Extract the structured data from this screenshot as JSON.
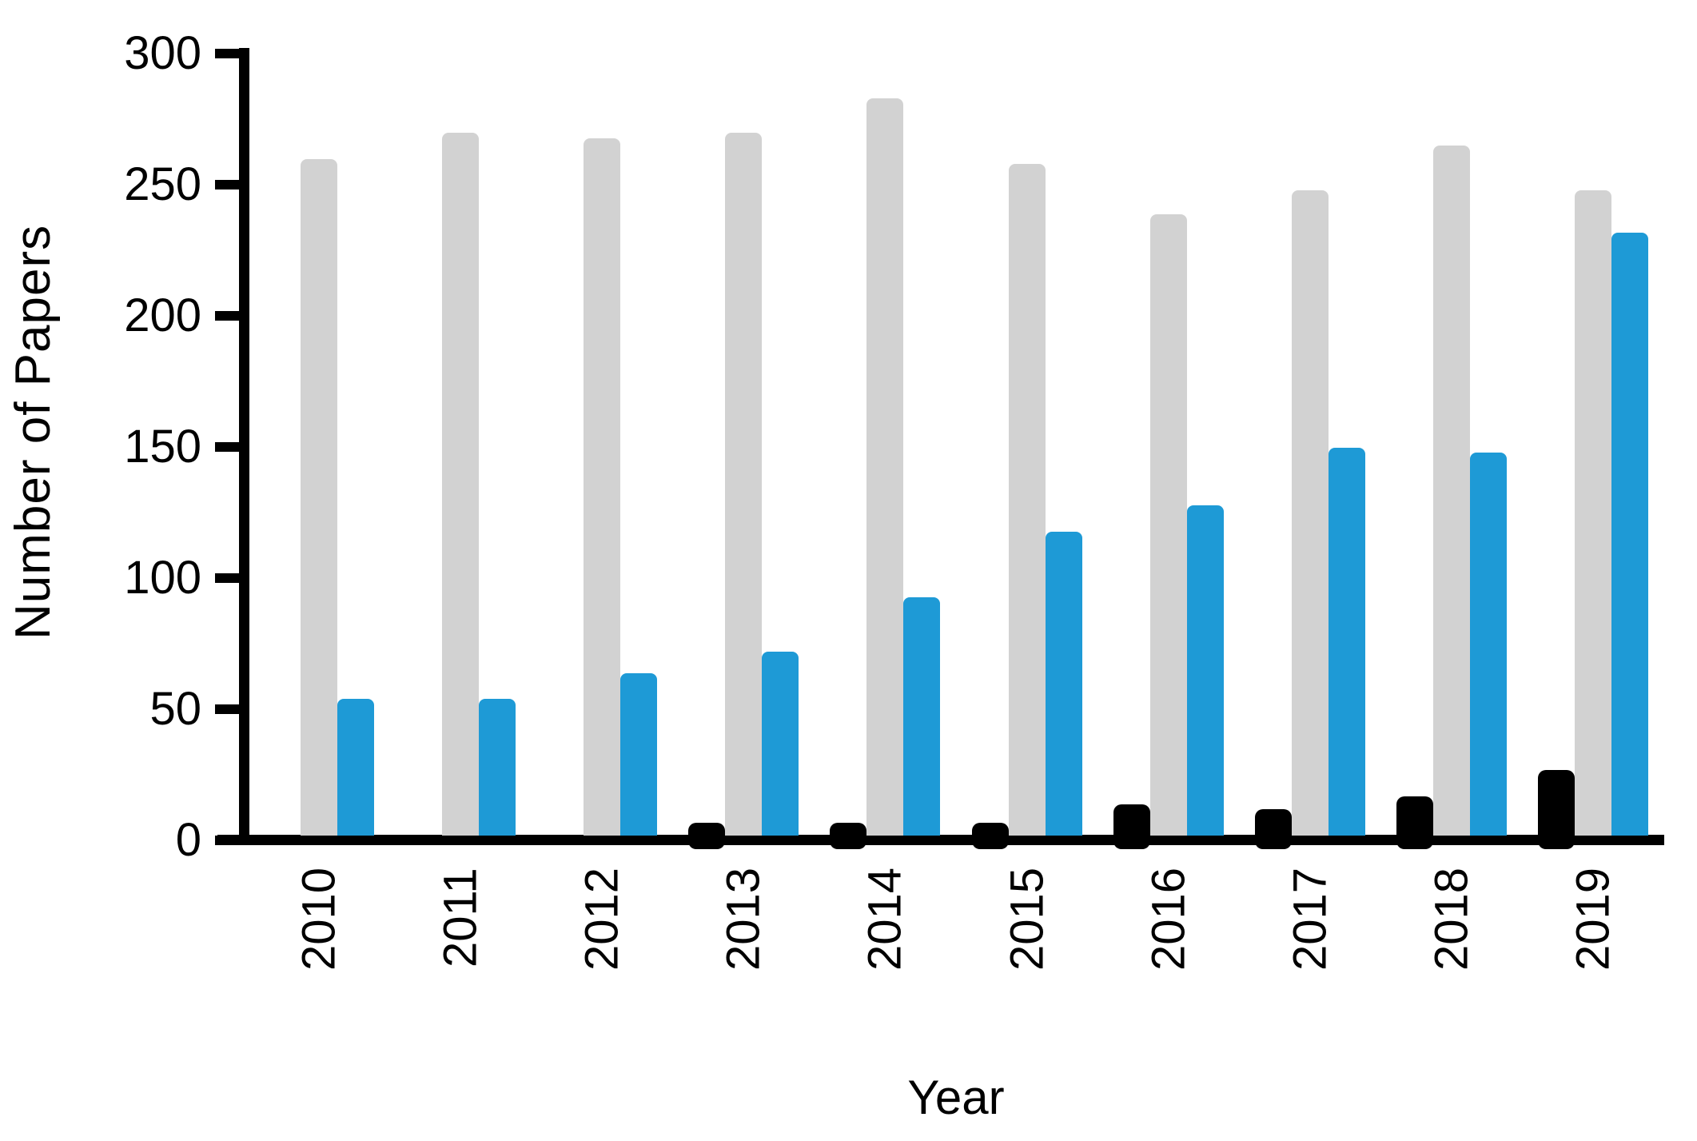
{
  "figure": {
    "background": "#ffffff"
  },
  "axes": {
    "y": {
      "title": "Number of Papers",
      "min": 0,
      "max": 300,
      "tick_values": [
        300,
        250,
        200,
        150,
        100,
        50,
        0
      ],
      "tick_labels": [
        "300",
        "250",
        "200",
        "150",
        "100",
        "50",
        "0"
      ]
    },
    "x": {
      "title": "Year",
      "categories": [
        "2010",
        "2011",
        "2012",
        "2013",
        "2014",
        "2015",
        "2016",
        "2017",
        "2018",
        "2019"
      ]
    }
  },
  "chart_data": {
    "type": "bar",
    "title": "",
    "xlabel": "Year",
    "ylabel": "Number of Papers",
    "ylim": [
      0,
      300
    ],
    "grid": false,
    "legend": "none",
    "categories": [
      "2010",
      "2011",
      "2012",
      "2013",
      "2014",
      "2015",
      "2016",
      "2017",
      "2018",
      "2019"
    ],
    "series": [
      {
        "name": "black",
        "color": "#000000",
        "values": [
          0,
          0,
          0,
          5,
          5,
          5,
          12,
          10,
          15,
          25
        ]
      },
      {
        "name": "gray",
        "color": "#d2d2d2",
        "values": [
          258,
          268,
          266,
          268,
          281,
          256,
          237,
          246,
          263,
          246
        ]
      },
      {
        "name": "blue",
        "color": "#1e9ad6",
        "values": [
          52,
          52,
          62,
          70,
          91,
          116,
          126,
          148,
          146,
          230
        ]
      }
    ]
  }
}
